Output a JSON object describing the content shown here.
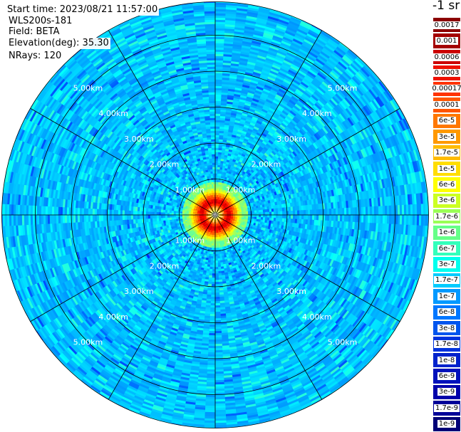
{
  "info": {
    "start_time": "Start time: 2023/08/21 11:57:00",
    "instrument": "WLS200s-181",
    "field": "Field: BETA",
    "elevation": "Elevation(deg): 35.30",
    "nrays": "NRays: 120"
  },
  "colorbar": {
    "unit": "-1 sr",
    "labels": [
      "0.0017",
      "0.001",
      "0.0006",
      "0.0003",
      "0.00017",
      "0.0001",
      "6e-5",
      "3e-5",
      "1.7e-5",
      "1e-5",
      "6e-6",
      "3e-6",
      "1.7e-6",
      "1e-6",
      "6e-7",
      "3e-7",
      "1.7e-7",
      "1e-7",
      "6e-8",
      "3e-8",
      "1.7e-8",
      "1e-8",
      "6e-9",
      "3e-9",
      "1.7e-9",
      "1e-9"
    ],
    "colors": [
      "#8b0000",
      "#a40000",
      "#cc0000",
      "#ee1100",
      "#ff3300",
      "#ff5500",
      "#ff7700",
      "#ff9900",
      "#ffbb00",
      "#ffdd00",
      "#ffff00",
      "#ccff22",
      "#99ff55",
      "#66ff88",
      "#33ffbb",
      "#00ffee",
      "#00ccff",
      "#0099ff",
      "#0077ff",
      "#0055ee",
      "#0033dd",
      "#0022cc",
      "#0011bb",
      "#0000aa",
      "#000099",
      "#000077"
    ]
  },
  "chart_data": {
    "type": "heatmap",
    "projection": "polar (PPI scan)",
    "range_rings_km": [
      1.0,
      2.0,
      3.0,
      4.0,
      5.0
    ],
    "ring_labels": [
      "1.00km",
      "2.00km",
      "3.00km",
      "4.00km",
      "5.00km"
    ],
    "max_range_km": 5.93,
    "rays": 120,
    "azimuth_lines_deg": [
      0,
      30,
      60,
      90,
      120,
      150,
      180,
      210,
      240,
      270,
      300,
      330
    ],
    "field": "BETA",
    "colorscale": "jet, log",
    "value_range": [
      1e-09,
      0.0017
    ],
    "near_field_peak_range_km": 0.35
  }
}
